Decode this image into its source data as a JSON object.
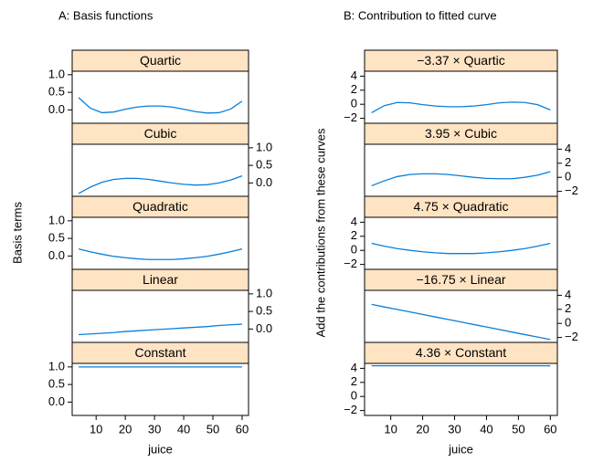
{
  "chart_data": [
    {
      "type": "line",
      "title": "A: Basis functions",
      "xlabel": "juice",
      "ylabel": "Basis terms",
      "x": [
        4,
        8,
        12,
        16,
        20,
        24,
        28,
        32,
        36,
        40,
        44,
        48,
        52,
        56,
        60
      ],
      "xlim": [
        1.8,
        62.2
      ],
      "xticks": [
        10,
        20,
        30,
        40,
        50,
        60
      ],
      "ylim": [
        -0.38,
        1.1
      ],
      "yticks": [
        {
          "value": 0,
          "label": "0.0"
        },
        {
          "value": 0.5,
          "label": "0.5"
        },
        {
          "value": 1,
          "label": "1.0"
        }
      ],
      "strip_color": "#ffe4c4",
      "series": [
        {
          "name": "Quartic",
          "color": "#0a7fd8",
          "values": [
            0.35,
            0.05,
            -0.08,
            -0.06,
            0.02,
            0.08,
            0.11,
            0.11,
            0.08,
            0.02,
            -0.05,
            -0.09,
            -0.08,
            0.02,
            0.25
          ]
        },
        {
          "name": "Cubic",
          "color": "#0a7fd8",
          "values": [
            -0.3,
            -0.12,
            0.02,
            0.1,
            0.13,
            0.13,
            0.1,
            0.05,
            0.0,
            -0.04,
            -0.06,
            -0.05,
            0.0,
            0.08,
            0.2
          ]
        },
        {
          "name": "Quadratic",
          "color": "#0a7fd8",
          "values": [
            0.2,
            0.12,
            0.05,
            -0.01,
            -0.05,
            -0.08,
            -0.1,
            -0.1,
            -0.1,
            -0.08,
            -0.05,
            -0.01,
            0.05,
            0.12,
            0.2
          ]
        },
        {
          "name": "Linear",
          "color": "#0a7fd8",
          "values": [
            -0.16,
            -0.14,
            -0.12,
            -0.1,
            -0.07,
            -0.05,
            -0.03,
            -0.01,
            0.01,
            0.03,
            0.05,
            0.07,
            0.1,
            0.12,
            0.14
          ]
        },
        {
          "name": "Constant",
          "color": "#0a7fd8",
          "values": [
            1,
            1,
            1,
            1,
            1,
            1,
            1,
            1,
            1,
            1,
            1,
            1,
            1,
            1,
            1
          ]
        }
      ]
    },
    {
      "type": "line",
      "title": "B: Contribution to fitted curve",
      "xlabel": "juice",
      "ylabel": "Add the contributions from these curves",
      "x": [
        4,
        8,
        12,
        16,
        20,
        24,
        28,
        32,
        36,
        40,
        44,
        48,
        52,
        56,
        60
      ],
      "xlim": [
        1.8,
        62.2
      ],
      "xticks": [
        10,
        20,
        30,
        40,
        50,
        60
      ],
      "ylim": [
        -2.7,
        4.7
      ],
      "yticks": [
        {
          "value": -2,
          "label": "−2"
        },
        0,
        2,
        4
      ],
      "strip_color": "#ffe4c4",
      "series": [
        {
          "name": "−3.37 × Quartic",
          "color": "#0a7fd8",
          "values": [
            -1.2,
            -0.2,
            0.25,
            0.2,
            -0.05,
            -0.25,
            -0.35,
            -0.35,
            -0.25,
            -0.05,
            0.2,
            0.3,
            0.25,
            -0.05,
            -0.8
          ]
        },
        {
          "name": "3.95 × Cubic",
          "color": "#0a7fd8",
          "values": [
            -1.2,
            -0.5,
            0.1,
            0.4,
            0.5,
            0.5,
            0.4,
            0.2,
            0.0,
            -0.15,
            -0.2,
            -0.2,
            0.0,
            0.3,
            0.8
          ]
        },
        {
          "name": "4.75 × Quadratic",
          "color": "#0a7fd8",
          "values": [
            1.0,
            0.6,
            0.25,
            0.0,
            -0.2,
            -0.35,
            -0.45,
            -0.45,
            -0.45,
            -0.35,
            -0.2,
            0.0,
            0.25,
            0.6,
            1.0
          ]
        },
        {
          "name": "−16.75 × Linear",
          "color": "#0a7fd8",
          "values": [
            2.7,
            2.34,
            1.99,
            1.63,
            1.27,
            0.91,
            0.56,
            0.2,
            -0.16,
            -0.51,
            -0.87,
            -1.23,
            -1.59,
            -1.94,
            -2.3
          ]
        },
        {
          "name": "4.36 × Constant",
          "color": "#0a7fd8",
          "values": [
            4.36,
            4.36,
            4.36,
            4.36,
            4.36,
            4.36,
            4.36,
            4.36,
            4.36,
            4.36,
            4.36,
            4.36,
            4.36,
            4.36,
            4.36
          ]
        }
      ]
    }
  ]
}
